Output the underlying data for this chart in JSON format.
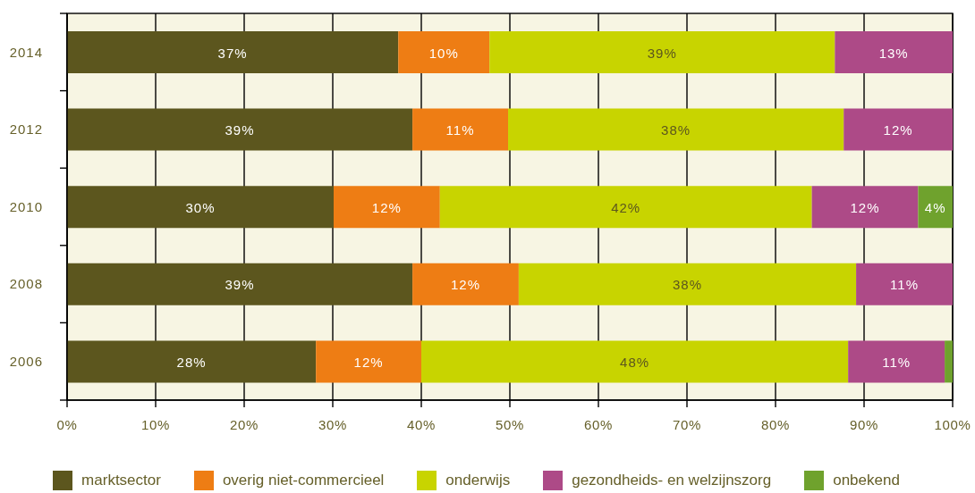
{
  "chart_data": {
    "type": "bar",
    "orientation": "horizontal",
    "stacked": true,
    "categories": [
      "2014",
      "2012",
      "2010",
      "2008",
      "2006"
    ],
    "series": [
      {
        "name": "marktsector",
        "color": "#5c561e",
        "values": [
          37.4,
          39.0,
          30.1,
          39.0,
          28.1
        ],
        "value_labels": [
          "37%",
          "39%",
          "30%",
          "39%",
          "28%"
        ]
      },
      {
        "name": "overig niet-commercieel",
        "color": "#ee7d14",
        "values": [
          10.3,
          10.8,
          12.0,
          12.0,
          11.9
        ],
        "value_labels": [
          "10%",
          "11%",
          "12%",
          "12%",
          "12%"
        ]
      },
      {
        "name": "onderwijs",
        "color": "#c8d400",
        "values": [
          39.0,
          37.9,
          42.0,
          38.1,
          48.2
        ],
        "value_labels": [
          "39%",
          "38%",
          "42%",
          "38%",
          "48%"
        ]
      },
      {
        "name": "gezondheids- en welzijnszorg",
        "color": "#ad4a87",
        "values": [
          13.3,
          12.3,
          12.0,
          10.9,
          10.9
        ],
        "value_labels": [
          "13%",
          "12%",
          "12%",
          "11%",
          "11%"
        ]
      },
      {
        "name": "onbekend",
        "color": "#6fa22d",
        "values": [
          null,
          null,
          3.9,
          null,
          0.9
        ],
        "value_labels": [
          null,
          null,
          "4%",
          null,
          null
        ]
      }
    ],
    "xlim": [
      0,
      100
    ],
    "xticks": [
      {
        "value": 0,
        "label": "0%"
      },
      {
        "value": 10,
        "label": "10%"
      },
      {
        "value": 20,
        "label": "20%"
      },
      {
        "value": 30,
        "label": "30%"
      },
      {
        "value": 40,
        "label": "40%"
      },
      {
        "value": 50,
        "label": "50%"
      },
      {
        "value": 60,
        "label": "60%"
      },
      {
        "value": 70,
        "label": "70%"
      },
      {
        "value": 80,
        "label": "80%"
      },
      {
        "value": 90,
        "label": "90%"
      },
      {
        "value": 100,
        "label": "100%"
      }
    ],
    "grid": "x",
    "legend": "bottom"
  }
}
